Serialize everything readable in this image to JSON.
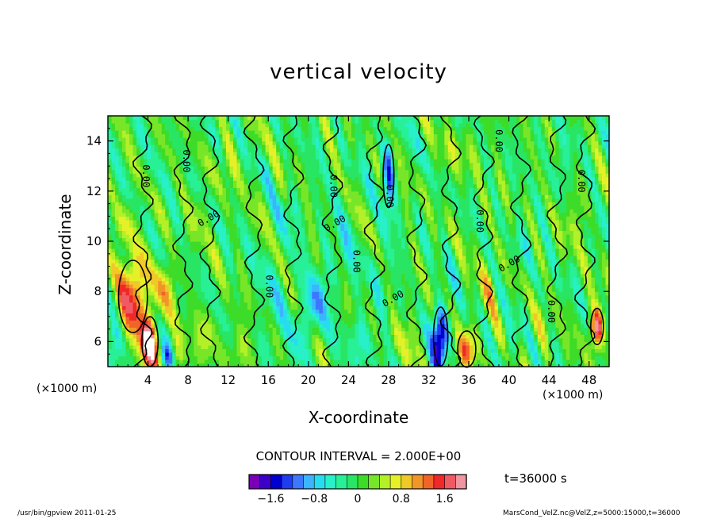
{
  "chart_data": {
    "type": "heatmap",
    "title": "vertical velocity",
    "xlabel": "X-coordinate",
    "ylabel": "Z-coordinate",
    "x_unit": "(×1000 m)",
    "x_unit_right": "(×1000 m)",
    "xlim": [
      0,
      50
    ],
    "ylim": [
      5,
      15
    ],
    "xticks": [
      4,
      8,
      12,
      16,
      20,
      24,
      28,
      32,
      36,
      40,
      44,
      48
    ],
    "yticks": [
      6,
      8,
      10,
      12,
      14
    ],
    "contour_interval_text": "CONTOUR INTERVAL = 2.000E+00",
    "contour_labels": [
      "0.00",
      "0.00",
      "0.00",
      "0.00",
      "0.00",
      "0.00",
      "0.00",
      "0.00",
      "0.00",
      "0.00",
      "0.00",
      "0.00",
      "0.00",
      "0.00"
    ],
    "time_text": "t=36000 s",
    "colorbar": {
      "range": [
        -2.0,
        2.0
      ],
      "step": 0.2,
      "tick_values": [
        -1.6,
        -0.8,
        0,
        0.8,
        1.6
      ],
      "tick_labels": [
        "−1.6",
        "−0.8",
        "0",
        "0.8",
        "1.6"
      ],
      "colors": [
        "#7a00b8",
        "#3c00c8",
        "#0000d0",
        "#1e3cf0",
        "#3c78ff",
        "#3cb4ff",
        "#28dcf0",
        "#28f0c8",
        "#28f096",
        "#28e664",
        "#3cdc28",
        "#78e628",
        "#b4f028",
        "#e6f028",
        "#f0c828",
        "#f09628",
        "#f06428",
        "#f02828",
        "#f05a64",
        "#f096a0"
      ],
      "low_color": "#ffffff",
      "high_color": "#ffffff"
    },
    "background_value": 0.0,
    "features": [
      {
        "x": 2.5,
        "z": 7.8,
        "sx": 1.6,
        "sz": 1.6,
        "w": 1.5
      },
      {
        "x": 4.2,
        "z": 6.0,
        "sx": 0.9,
        "sz": 1.1,
        "w": 1.9
      },
      {
        "x": 5.8,
        "z": 8.2,
        "sx": 1.2,
        "sz": 1.0,
        "w": 0.6
      },
      {
        "x": 1.5,
        "z": 10.6,
        "sx": 1.2,
        "sz": 0.8,
        "w": 0.5
      },
      {
        "x": 7.0,
        "z": 5.5,
        "sx": 0.8,
        "sz": 0.8,
        "w": 0.6
      },
      {
        "x": 6.0,
        "z": 5.4,
        "sx": 0.6,
        "sz": 0.5,
        "w": -0.9
      },
      {
        "x": 0.8,
        "z": 6.0,
        "sx": 0.8,
        "sz": 1.0,
        "w": -0.6
      },
      {
        "x": 9.8,
        "z": 6.3,
        "sx": 0.9,
        "sz": 1.0,
        "w": 0.5
      },
      {
        "x": 13.2,
        "z": 5.8,
        "sx": 1.0,
        "sz": 1.0,
        "w": 0.5
      },
      {
        "x": 16.5,
        "z": 7.5,
        "sx": 1.4,
        "sz": 1.8,
        "w": -0.3
      },
      {
        "x": 19.3,
        "z": 6.5,
        "sx": 1.0,
        "sz": 1.2,
        "w": -0.6
      },
      {
        "x": 21.0,
        "z": 7.8,
        "sx": 1.0,
        "sz": 1.2,
        "w": -0.7
      },
      {
        "x": 23.0,
        "z": 9.5,
        "sx": 1.5,
        "sz": 1.8,
        "w": -0.3
      },
      {
        "x": 25.2,
        "z": 6.0,
        "sx": 1.0,
        "sz": 1.2,
        "w": -0.5
      },
      {
        "x": 28.0,
        "z": 12.6,
        "sx": 0.6,
        "sz": 1.4,
        "w": -1.2
      },
      {
        "x": 27.4,
        "z": 8.8,
        "sx": 1.0,
        "sz": 1.5,
        "w": -0.3
      },
      {
        "x": 30.0,
        "z": 6.0,
        "sx": 0.9,
        "sz": 1.6,
        "w": 0.5
      },
      {
        "x": 29.2,
        "z": 5.3,
        "sx": 0.6,
        "sz": 0.6,
        "w": -0.4
      },
      {
        "x": 33.2,
        "z": 6.2,
        "sx": 0.8,
        "sz": 1.3,
        "w": -1.9
      },
      {
        "x": 35.8,
        "z": 5.7,
        "sx": 1.0,
        "sz": 0.8,
        "w": 1.2
      },
      {
        "x": 38.0,
        "z": 8.2,
        "sx": 1.3,
        "sz": 1.3,
        "w": 0.4
      },
      {
        "x": 40.2,
        "z": 5.8,
        "sx": 0.8,
        "sz": 1.0,
        "w": -0.4
      },
      {
        "x": 43.0,
        "z": 6.3,
        "sx": 1.2,
        "sz": 1.3,
        "w": 0.3
      },
      {
        "x": 48.8,
        "z": 6.6,
        "sx": 0.7,
        "sz": 0.8,
        "w": 1.9
      },
      {
        "x": 46.5,
        "z": 10.8,
        "sx": 1.4,
        "sz": 1.2,
        "w": 0.35
      },
      {
        "x": 45.5,
        "z": 13.3,
        "sx": 1.0,
        "sz": 1.0,
        "w": -0.3
      },
      {
        "x": 35.0,
        "z": 13.5,
        "sx": 2.0,
        "sz": 1.0,
        "w": 0.3
      },
      {
        "x": 12.0,
        "z": 13.0,
        "sx": 1.5,
        "sz": 1.0,
        "w": 0.3
      },
      {
        "x": 18.0,
        "z": 11.0,
        "sx": 1.2,
        "sz": 1.0,
        "w": -0.3
      },
      {
        "x": 41.5,
        "z": 9.8,
        "sx": 1.2,
        "sz": 1.0,
        "w": -0.25
      },
      {
        "x": 9.0,
        "z": 11.0,
        "sx": 1.0,
        "sz": 1.0,
        "w": 0.3
      }
    ]
  },
  "footer": {
    "left": "/usr/bin/gpview  2011-01-25",
    "right": "MarsCond_VelZ.nc@VelZ,z=5000:15000,t=36000"
  }
}
